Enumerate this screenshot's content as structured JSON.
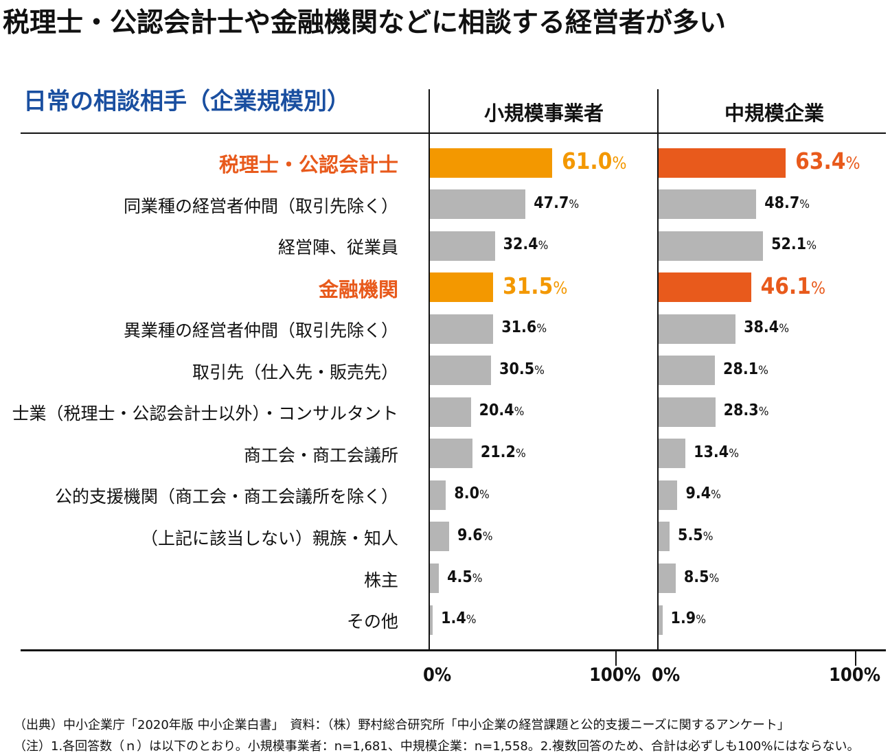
{
  "headline": "税理士・公認会計士や金融機関などに相談する経営者が多い",
  "chart_data": {
    "type": "bar",
    "orientation": "horizontal",
    "title": "日常の相談相手（企業規模別）",
    "categories": [
      "税理士・公認会計士",
      "同業種の経営者仲間（取引先除く）",
      "経営陣、従業員",
      "金融機関",
      "異業種の経営者仲間（取引先除く）",
      "取引先（仕入先・販売先）",
      "士業（税理士・公認会計士以外）・コンサルタント",
      "商工会・商工会議所",
      "公的支援機関（商工会・商工会議所を除く）",
      "（上記に該当しない）親族・知人",
      "株主",
      "その他"
    ],
    "highlighted_categories": [
      0,
      3
    ],
    "series": [
      {
        "name": "小規模事業者",
        "values": [
          61.0,
          47.7,
          32.4,
          31.5,
          31.6,
          30.5,
          20.4,
          21.2,
          8.0,
          9.6,
          4.5,
          1.4
        ],
        "value_labels": [
          "61.0",
          "47.7",
          "32.4",
          "31.5",
          "31.6",
          "30.5",
          "20.4",
          "21.2",
          "8.0",
          "9.6",
          "4.5",
          "1.4"
        ],
        "highlight_color": "#f39800"
      },
      {
        "name": "中規模企業",
        "values": [
          63.4,
          48.7,
          52.1,
          46.1,
          38.4,
          28.1,
          28.3,
          13.4,
          9.4,
          5.5,
          8.5,
          1.9
        ],
        "value_labels": [
          "63.4",
          "48.7",
          "52.1",
          "46.1",
          "38.4",
          "28.1",
          "28.3",
          "13.4",
          "9.4",
          "5.5",
          "8.5",
          "1.9"
        ],
        "highlight_color": "#e85a1c"
      }
    ],
    "unit": "%",
    "xlim": [
      0,
      100
    ],
    "x_tick_labels": [
      "0%",
      "100%"
    ],
    "default_bar_color": "#b5b5b5",
    "highlight_label_color": "#e85a1c",
    "title_color": "#1a4fa0",
    "grid": false,
    "legend": "none"
  },
  "notes": [
    "（出典）中小企業庁「2020年版 中小企業白書」　資料：（株）野村総合研究所「中小企業の経営課題と公的支援ニーズに関するアンケート」",
    "（注）1.各回答数（ｎ）は以下のとおり。小規模事業者：n=1,681、中規模企業：n=1,558。2.複数回答のため、合計は必ずしも100%にはならない。"
  ]
}
